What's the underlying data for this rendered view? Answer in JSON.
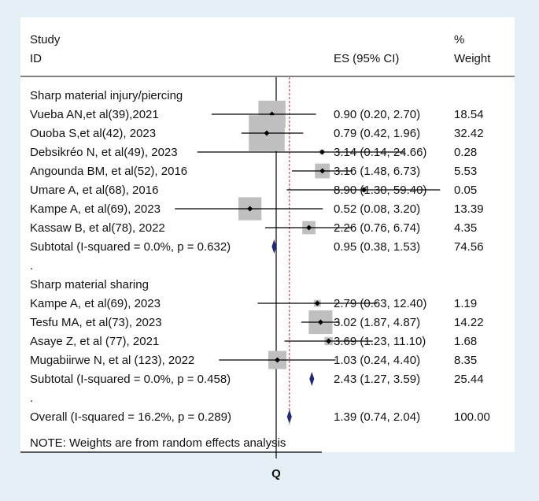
{
  "colors": {
    "background": "#e4f0f5",
    "panel": "#ffffff",
    "box": "#bfbfbf",
    "point": "#000000",
    "diamond": "#1f2a7a",
    "null_line": "#000000",
    "overall_line": "#c0504d"
  },
  "chart_data": {
    "type": "forest",
    "title": "",
    "xlabel": "",
    "xlim": [
      0.1,
      60
    ],
    "x_scale": "log",
    "null_value": 1,
    "x_tick_label": "Q",
    "overall_estimate": 1.39,
    "headers": {
      "study_line1": "Study",
      "study_line2": "ID",
      "es": "ES (95% CI)",
      "weight_line1": "%",
      "weight_line2": "Weight"
    },
    "rows": [
      {
        "kind": "group",
        "label": "Sharp material injury/piercing"
      },
      {
        "kind": "study",
        "label": "Vueba AN,et al(39),2021",
        "es": 0.9,
        "lo": 0.2,
        "hi": 2.7,
        "ci": "0.90 (0.20, 2.70)",
        "weight": 18.54,
        "weight_text": "18.54"
      },
      {
        "kind": "study",
        "label": "Ouoba S,et al(42), 2023",
        "es": 0.79,
        "lo": 0.42,
        "hi": 1.96,
        "ci": "0.79 (0.42, 1.96)",
        "weight": 32.42,
        "weight_text": "32.42"
      },
      {
        "kind": "study",
        "label": "Debsikréo N, et al(49), 2023",
        "es": 3.14,
        "lo": 0.14,
        "hi": 24.66,
        "ci": "3.14 (0.14, 24.66)",
        "weight": 0.28,
        "weight_text": "0.28"
      },
      {
        "kind": "study",
        "label": "Angounda BM, et al(52), 2016",
        "es": 3.16,
        "lo": 1.48,
        "hi": 6.73,
        "ci": "3.16 (1.48, 6.73)",
        "weight": 5.53,
        "weight_text": "5.53"
      },
      {
        "kind": "study",
        "label": "Umare A, et al(68),  2016",
        "es": 8.9,
        "lo": 1.3,
        "hi": 59.4,
        "ci": "8.90 (1.30, 59.40)",
        "weight": 0.05,
        "weight_text": "0.05"
      },
      {
        "kind": "study",
        "label": "Kampe A, et al(69), 2023",
        "es": 0.52,
        "lo": 0.08,
        "hi": 3.2,
        "ci": "0.52 (0.08, 3.20)",
        "weight": 13.39,
        "weight_text": "13.39"
      },
      {
        "kind": "study",
        "label": "Kassaw B, et al(78), 2022",
        "es": 2.26,
        "lo": 0.76,
        "hi": 6.74,
        "ci": "2.26 (0.76, 6.74)",
        "weight": 4.35,
        "weight_text": "4.35"
      },
      {
        "kind": "subtotal",
        "label": "Subtotal  (I-squared = 0.0%, p = 0.632)",
        "es": 0.95,
        "lo": 0.38,
        "hi": 1.53,
        "ci": "0.95 (0.38, 1.53)",
        "weight": 74.56,
        "weight_text": "74.56"
      },
      {
        "kind": "spacer",
        "label": "."
      },
      {
        "kind": "group",
        "label": "Sharp material sharing"
      },
      {
        "kind": "study",
        "label": "Kampe A, et al(69), 2023",
        "es": 2.79,
        "lo": 0.63,
        "hi": 12.4,
        "ci": "2.79 (0.63, 12.40)",
        "weight": 1.19,
        "weight_text": "1.19"
      },
      {
        "kind": "study",
        "label": "Tesfu MA, et al(73), 2023",
        "es": 3.02,
        "lo": 1.87,
        "hi": 4.87,
        "ci": "3.02 (1.87, 4.87)",
        "weight": 14.22,
        "weight_text": "14.22"
      },
      {
        "kind": "study",
        "label": "Asaye Z, et al (77), 2021",
        "es": 3.69,
        "lo": 1.23,
        "hi": 11.1,
        "ci": "3.69 (1.23, 11.10)",
        "weight": 1.68,
        "weight_text": "1.68"
      },
      {
        "kind": "study",
        "label": "Mugabiirwe N, et al (123), 2022",
        "es": 1.03,
        "lo": 0.24,
        "hi": 4.4,
        "ci": "1.03 (0.24, 4.40)",
        "weight": 8.35,
        "weight_text": "8.35"
      },
      {
        "kind": "subtotal",
        "label": "Subtotal  (I-squared = 0.0%, p = 0.458)",
        "es": 2.43,
        "lo": 1.27,
        "hi": 3.59,
        "ci": "2.43 (1.27, 3.59)",
        "weight": 25.44,
        "weight_text": "25.44"
      },
      {
        "kind": "spacer",
        "label": "."
      },
      {
        "kind": "overall",
        "label": "Overall  (I-squared = 16.2%, p = 0.289)",
        "es": 1.39,
        "lo": 0.74,
        "hi": 2.04,
        "ci": "1.39 (0.74, 2.04)",
        "weight": 100.0,
        "weight_text": "100.00"
      }
    ],
    "note": "NOTE: Weights are from random effects analysis"
  }
}
